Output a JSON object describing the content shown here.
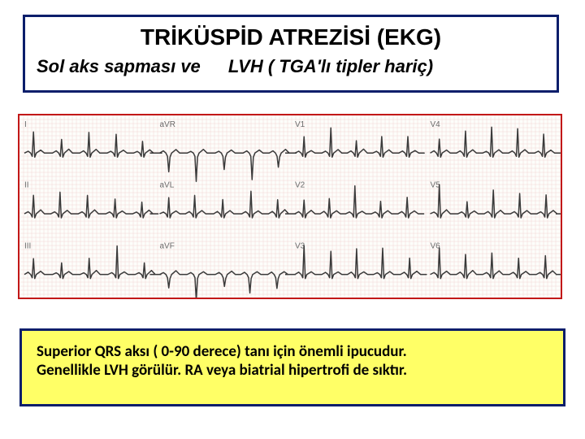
{
  "header": {
    "title": "TRİKÜSPİD ATREZİSİ (EKG)",
    "sub_left": "Sol aks sapması ve",
    "sub_right": "LVH ( TGA'lı tipler hariç)",
    "title_fontsize": 28,
    "subtitle_fontsize": 22,
    "title_color": "#000000",
    "border_color": "#0b1e6b",
    "bg": "#ffffff"
  },
  "ecg": {
    "border_color": "#c21818",
    "bg": "#fdfdfa",
    "grid_color": "#f2d6d6",
    "trace_color": "#3a3a3a",
    "lead_label_color": "#6b6b6b",
    "columns": 4,
    "rows": 3,
    "lead_labels": [
      [
        "I",
        "aVR",
        "V1",
        "V4"
      ],
      [
        "II",
        "aVL",
        "V2",
        "V5"
      ],
      [
        "III",
        "aVF",
        "V3",
        "V6"
      ]
    ],
    "trace_width": 1.5,
    "spikes_per_cell": 5
  },
  "caption": {
    "border_color": "#0b1e6b",
    "bg": "#ffff66",
    "text_color": "#000000",
    "fontsize": 19,
    "line1": "Superior QRS aksı ( 0-90 derece) tanı için önemli ipucudur.",
    "line2": "Genellikle LVH  görülür. RA veya biatrial hipertrofi de sıktır."
  }
}
